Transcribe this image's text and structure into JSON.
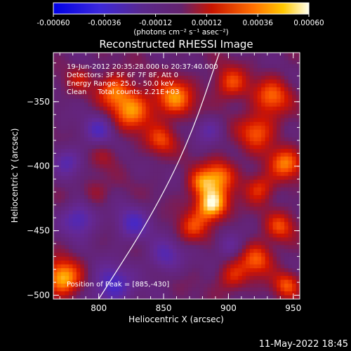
{
  "colorbar": {
    "ticks": [
      "-0.00060",
      "-0.00036",
      "-0.00012",
      "0.00012",
      "0.00036",
      "0.00060"
    ],
    "unit_label": "(photons cm⁻² s⁻¹ asec⁻²)",
    "min": -0.0006,
    "max": 0.0006
  },
  "plot": {
    "title": "Reconstructed RHESSI Image",
    "info_lines": [
      "19-Jun-2012 20:35:28.000 to 20:37:40.000",
      "Detectors: 3F 5F 6F 7F 8F, Att 0",
      "Energy Range: 25.0 - 50.0 keV",
      "Clean     Total counts: 2.21E+03"
    ],
    "peak_label": "Position of Peak = [885,-430]"
  },
  "footer": {
    "timestamp": "11-May-2022 18:45"
  },
  "chart_data": {
    "type": "heatmap",
    "xlabel": "Heliocentric X (arcsec)",
    "ylabel": "Heliocentric Y (arcsec)",
    "xlim": [
      765,
      955
    ],
    "ylim": [
      -503,
      -312
    ],
    "x_ticks": [
      800,
      850,
      900,
      950
    ],
    "y_ticks": [
      -350,
      -400,
      -450,
      -500
    ],
    "peak": [
      885,
      -430
    ],
    "limb": [
      [
        800,
        -503
      ],
      [
        840,
        -440
      ],
      [
        870,
        -380
      ],
      [
        893,
        -312
      ]
    ],
    "blobs": [
      {
        "x": 887,
        "y": -430,
        "r": 10,
        "v": 1.0
      },
      {
        "x": 893,
        "y": -407,
        "r": 10,
        "v": 0.65
      },
      {
        "x": 878,
        "y": -413,
        "r": 8,
        "v": 0.5
      },
      {
        "x": 872,
        "y": -448,
        "r": 9,
        "v": 0.45
      },
      {
        "x": 772,
        "y": -487,
        "r": 11,
        "v": 0.85
      },
      {
        "x": 826,
        "y": -357,
        "r": 12,
        "v": 0.7
      },
      {
        "x": 812,
        "y": -341,
        "r": 10,
        "v": 0.6
      },
      {
        "x": 858,
        "y": -347,
        "r": 12,
        "v": 0.7
      },
      {
        "x": 848,
        "y": -380,
        "r": 9,
        "v": 0.5
      },
      {
        "x": 902,
        "y": -336,
        "r": 10,
        "v": 0.55
      },
      {
        "x": 934,
        "y": -346,
        "r": 11,
        "v": 0.6
      },
      {
        "x": 922,
        "y": -373,
        "r": 11,
        "v": 0.6
      },
      {
        "x": 944,
        "y": -398,
        "r": 10,
        "v": 0.65
      },
      {
        "x": 924,
        "y": -417,
        "r": 9,
        "v": 0.5
      },
      {
        "x": 940,
        "y": -447,
        "r": 9,
        "v": 0.5
      },
      {
        "x": 922,
        "y": -472,
        "r": 10,
        "v": 0.6
      },
      {
        "x": 945,
        "y": -492,
        "r": 8,
        "v": 0.55
      },
      {
        "x": 903,
        "y": -486,
        "r": 9,
        "v": 0.45
      },
      {
        "x": 797,
        "y": -420,
        "r": 8,
        "v": 0.25
      },
      {
        "x": 805,
        "y": -392,
        "r": 8,
        "v": 0.2
      },
      {
        "x": 785,
        "y": -333,
        "r": 8,
        "v": 0.3
      },
      {
        "x": 785,
        "y": -441,
        "r": 10,
        "v": -0.55
      },
      {
        "x": 826,
        "y": -445,
        "r": 10,
        "v": -0.5
      },
      {
        "x": 810,
        "y": -493,
        "r": 12,
        "v": -0.6
      },
      {
        "x": 851,
        "y": -470,
        "r": 10,
        "v": -0.45
      },
      {
        "x": 800,
        "y": -372,
        "r": 9,
        "v": -0.45
      },
      {
        "x": 776,
        "y": -396,
        "r": 9,
        "v": -0.4
      },
      {
        "x": 885,
        "y": -372,
        "r": 8,
        "v": -0.35
      },
      {
        "x": 900,
        "y": -462,
        "r": 8,
        "v": -0.35
      }
    ]
  }
}
